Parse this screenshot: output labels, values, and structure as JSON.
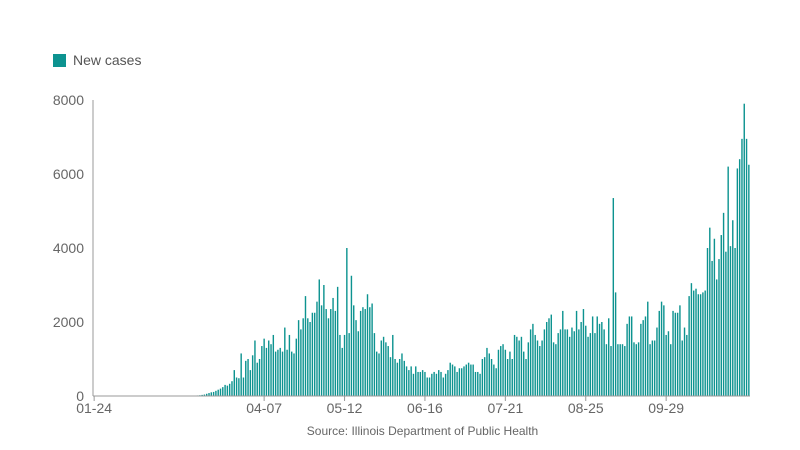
{
  "chart_data": {
    "type": "bar",
    "legend": [
      {
        "name": "New cases",
        "color": "#0d9390"
      }
    ],
    "series": [
      {
        "name": "New cases",
        "color": "#0d9390"
      }
    ],
    "x_tick_labels": [
      "01-24",
      "04-07",
      "05-12",
      "06-16",
      "07-21",
      "08-25",
      "09-29"
    ],
    "x_tick_days": [
      0,
      74,
      109,
      144,
      179,
      214,
      249
    ],
    "x_start": "2020-01-24",
    "x_end": "2020-11-07",
    "ylim": [
      0,
      8000
    ],
    "yticks": [
      0,
      2000,
      4000,
      6000,
      8000
    ],
    "values": [
      0,
      0,
      0,
      0,
      0,
      0,
      0,
      1,
      0,
      0,
      0,
      0,
      0,
      0,
      0,
      0,
      0,
      0,
      0,
      0,
      0,
      0,
      0,
      0,
      0,
      0,
      0,
      0,
      0,
      0,
      0,
      0,
      0,
      0,
      0,
      0,
      0,
      0,
      0,
      0,
      0,
      0,
      0,
      5,
      10,
      15,
      20,
      30,
      40,
      60,
      80,
      100,
      110,
      140,
      170,
      200,
      240,
      300,
      280,
      330,
      400,
      700,
      500,
      480,
      1150,
      500,
      950,
      1000,
      700,
      1100,
      1500,
      900,
      1000,
      1350,
      1550,
      1300,
      1500,
      1400,
      1650,
      1200,
      1250,
      1300,
      1200,
      1850,
      1250,
      1650,
      1200,
      1150,
      1550,
      2050,
      1800,
      2100,
      2700,
      2100,
      2000,
      2250,
      2250,
      2550,
      3150,
      2450,
      3000,
      2350,
      2100,
      2350,
      2650,
      2300,
      2950,
      1650,
      1300,
      1650,
      4000,
      1700,
      3250,
      2450,
      2050,
      1750,
      2300,
      2400,
      2350,
      2750,
      2400,
      2500,
      1700,
      1200,
      1150,
      1500,
      1600,
      1450,
      1350,
      1050,
      1650,
      1000,
      900,
      1000,
      1150,
      950,
      800,
      700,
      800,
      600,
      800,
      650,
      650,
      700,
      650,
      500,
      500,
      600,
      650,
      600,
      700,
      650,
      500,
      600,
      700,
      900,
      850,
      800,
      650,
      750,
      750,
      800,
      850,
      900,
      850,
      850,
      650,
      650,
      600,
      1000,
      1050,
      1300,
      1150,
      1000,
      850,
      750,
      1250,
      1350,
      1400,
      1250,
      1000,
      1200,
      1000,
      1650,
      1600,
      1500,
      1600,
      1200,
      1000,
      1450,
      1800,
      1950,
      1650,
      1500,
      1350,
      1500,
      1800,
      2000,
      2100,
      2200,
      1450,
      1400,
      1700,
      1800,
      2300,
      1800,
      1800,
      1600,
      1850,
      1750,
      2300,
      1800,
      2000,
      2350,
      1900,
      1600,
      1700,
      2150,
      1700,
      2150,
      1950,
      2000,
      1800,
      1400,
      2100,
      1350,
      5350,
      2800,
      1400,
      1400,
      1400,
      1350,
      1950,
      2150,
      2150,
      1450,
      1400,
      1450,
      1950,
      2050,
      2150,
      2550,
      1400,
      1500,
      1500,
      1850,
      2300,
      2550,
      2450,
      1650,
      1750,
      1400,
      2300,
      2250,
      2250,
      2450,
      1500,
      1850,
      1650,
      2700,
      3050,
      2850,
      2900,
      2750,
      2750,
      2800,
      2850,
      4000,
      4550,
      3650,
      4250,
      3150,
      3700,
      4350,
      4950,
      3900,
      6200,
      4050,
      4750,
      4000,
      6150,
      6400,
      6950,
      7900,
      6950,
      6250
    ]
  },
  "source": "Source: Illinois Department of Public Health",
  "colors": {
    "bar": "#0d9390",
    "axis": "#999999",
    "text": "#666666"
  }
}
